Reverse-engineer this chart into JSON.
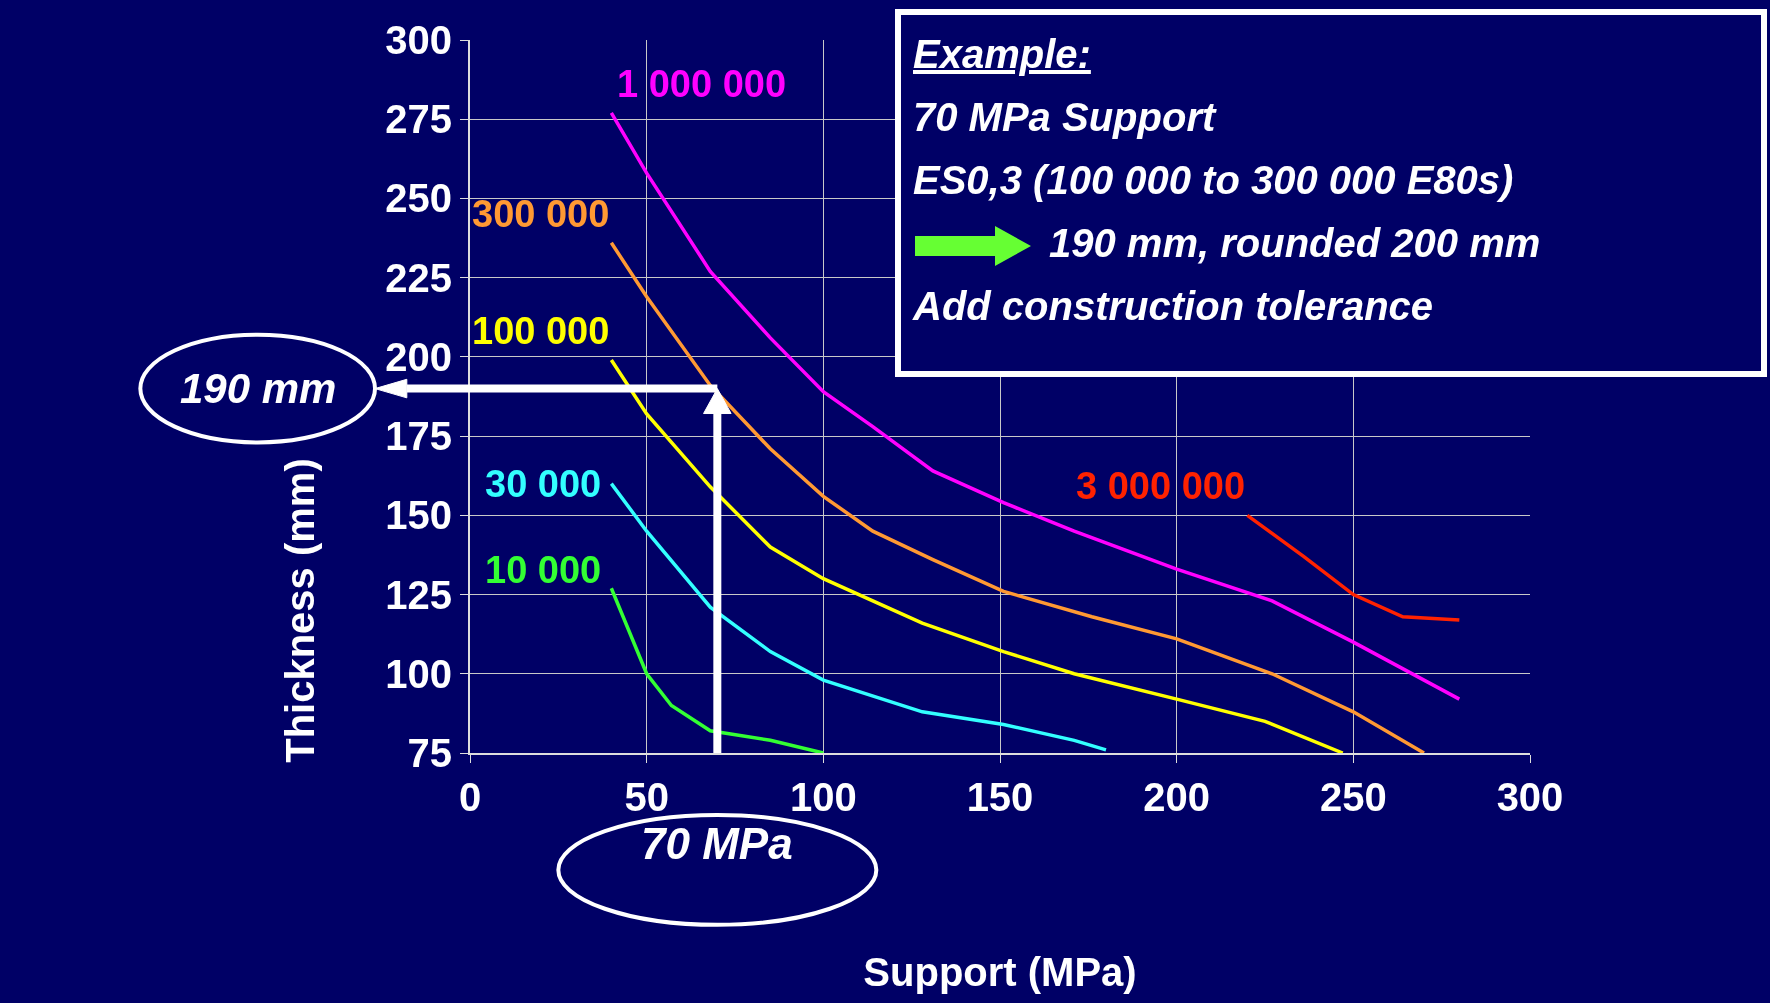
{
  "chart_data": {
    "type": "line",
    "xlabel": "Support (MPa)",
    "ylabel": "Thickness (mm)",
    "xlim": [
      0,
      300
    ],
    "xticks": [
      0,
      50,
      100,
      150,
      200,
      250,
      300
    ],
    "ylim": [
      75,
      300
    ],
    "yticks": [
      75,
      100,
      125,
      150,
      175,
      200,
      225,
      250,
      275,
      300
    ],
    "grid": true,
    "series": [
      {
        "name": "1 000 000",
        "color": "#ff00ff",
        "x": [
          40,
          50,
          68,
          85,
          100,
          114,
          131,
          151,
          171,
          200,
          227,
          250,
          280
        ],
        "values": [
          277,
          258,
          227,
          206,
          189,
          178,
          164,
          154,
          145,
          133,
          123,
          110,
          92
        ]
      },
      {
        "name": "300 000",
        "color": "#ff9933",
        "x": [
          40,
          50,
          68,
          85,
          100,
          114,
          131,
          151,
          176,
          200,
          227,
          250,
          270
        ],
        "values": [
          236,
          219,
          191,
          171,
          156,
          145,
          136,
          126,
          118,
          111,
          100,
          88,
          75
        ]
      },
      {
        "name": "100 000",
        "color": "#ffff00",
        "x": [
          40,
          50,
          68,
          85,
          100,
          128,
          151,
          171,
          200,
          225,
          247
        ],
        "values": [
          199,
          182,
          159,
          140,
          130,
          116,
          107,
          100,
          92,
          85,
          75
        ]
      },
      {
        "name": "30 000",
        "color": "#33ffff",
        "x": [
          40,
          50,
          68,
          85,
          100,
          128,
          151,
          171,
          180
        ],
        "values": [
          160,
          145,
          121,
          107,
          98,
          88,
          84,
          79,
          76
        ]
      },
      {
        "name": "10 000",
        "color": "#33ff33",
        "x": [
          40,
          50,
          57,
          68,
          85,
          100
        ],
        "values": [
          127,
          100,
          90,
          82,
          79,
          75
        ]
      },
      {
        "name": "3 000 000",
        "color": "#ff2200",
        "x": [
          220,
          236,
          250,
          264,
          280
        ],
        "values": [
          150,
          137,
          125,
          118,
          117
        ]
      }
    ],
    "ref_lines": [
      {
        "axis": "y",
        "value": 190,
        "label": "190 mm",
        "color": "#ffffff"
      },
      {
        "axis": "x",
        "value": 70,
        "label": "70 MPa",
        "color": "#ffffff"
      }
    ],
    "annotations": [
      "Example:",
      "70 MPa Support",
      "ES0,3 (100 000 to 300 000 E80s)",
      "190 mm, rounded 200 mm",
      "Add construction tolerance"
    ]
  }
}
